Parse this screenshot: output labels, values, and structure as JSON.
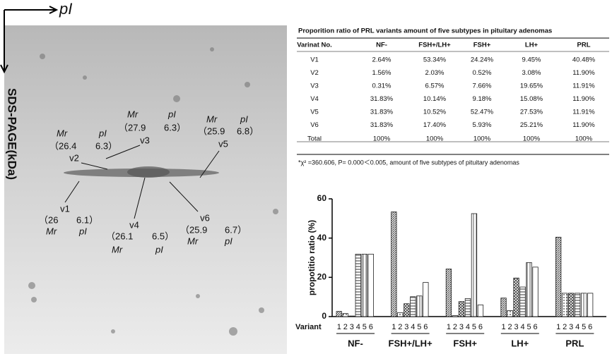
{
  "gel": {
    "x_axis_label": "pI",
    "y_axis_label": "SDS-PAGE(kDa)",
    "spots": [
      {
        "name": "v1",
        "mr_value": "（26",
        "pi_value": "6.1）",
        "mr": "Mr",
        "pi": "pI"
      },
      {
        "name": "v2",
        "mr_value": "（26.4",
        "pi_value": "6.3）",
        "mr": "Mr",
        "pi": "pI"
      },
      {
        "name": "v3",
        "mr_value": "（27.9",
        "pi_value": "6.3）",
        "mr": "Mr",
        "pi": "pI"
      },
      {
        "name": "v4",
        "mr_value": "（26.1",
        "pi_value": "6.5）",
        "mr": "Mr",
        "pi": "pI"
      },
      {
        "name": "v5",
        "mr_value": "（25.9",
        "pi_value": "6.8）",
        "mr": "Mr",
        "pi": "pI"
      },
      {
        "name": "v6",
        "mr_value": "（25.9",
        "pi_value": "6.7）",
        "mr": "Mr",
        "pi": "pI"
      }
    ]
  },
  "table": {
    "title": "Proporition ratio of PRL variants amount of five subtypes in pituitary adenomas",
    "header": [
      "Varinat No.",
      "NF-",
      "FSH+/LH+",
      "FSH+",
      "LH+",
      "PRL"
    ],
    "rows": [
      [
        "V1",
        "2.64%",
        "53.34%",
        "24.24%",
        "9.45%",
        "40.48%"
      ],
      [
        "V2",
        "1.56%",
        "2.03%",
        "0.52%",
        "3.08%",
        "11.90%"
      ],
      [
        "V3",
        "0.31%",
        "6.57%",
        "7.66%",
        "19.65%",
        "11.91%"
      ],
      [
        "V4",
        "31.83%",
        "10.14%",
        "9.18%",
        "15.08%",
        "11.90%"
      ],
      [
        "V5",
        "31.83%",
        "10.52%",
        "52.47%",
        "27.53%",
        "11.91%"
      ],
      [
        "V6",
        "31.83%",
        "17.40%",
        "5.93%",
        "25.21%",
        "11.90%"
      ],
      [
        "Total",
        "100%",
        "100%",
        "100%",
        "100%",
        "100%"
      ]
    ],
    "footnote": "*χ² =360.606, P= 0.000＜0.005, amount of five subtypes of pituitary adenomas"
  },
  "chart_data": {
    "type": "bar",
    "y_label": "propotitio ratio (%)",
    "x_label": "Variant",
    "categories": [
      "NF-",
      "FSH+/LH+",
      "FSH+",
      "LH+",
      "PRL"
    ],
    "series": [
      {
        "name": "1",
        "values": [
          2.64,
          53.34,
          24.24,
          9.45,
          40.48
        ]
      },
      {
        "name": "2",
        "values": [
          1.56,
          2.03,
          0.52,
          3.08,
          11.9
        ]
      },
      {
        "name": "3",
        "values": [
          0.31,
          6.57,
          7.66,
          19.65,
          11.91
        ]
      },
      {
        "name": "4",
        "values": [
          31.83,
          10.14,
          9.18,
          15.08,
          11.9
        ]
      },
      {
        "name": "5",
        "values": [
          31.83,
          10.52,
          52.47,
          27.53,
          11.91
        ]
      },
      {
        "name": "6",
        "values": [
          31.83,
          17.4,
          5.93,
          25.21,
          11.9
        ]
      }
    ],
    "ylim": [
      0,
      60
    ],
    "yticks": [
      0,
      20,
      40,
      60
    ]
  }
}
